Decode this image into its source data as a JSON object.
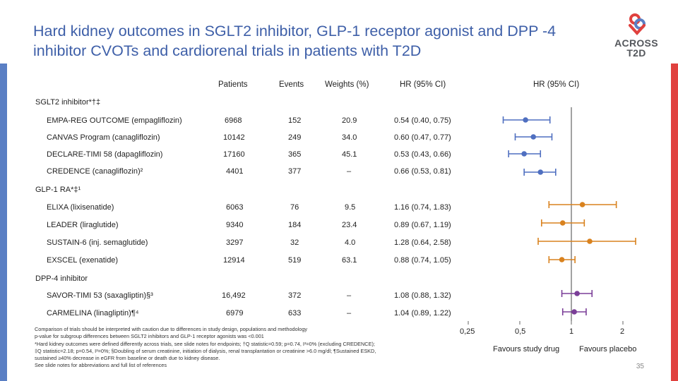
{
  "slide": {
    "title": "Hard kidney outcomes in SGLT2 inhibitor, GLP-1 receptor agonist and DPP -4 inhibitor CVOTs and cardiorenal trials in patients with T2D",
    "logo_line1": "ACROSS",
    "logo_line2": "T2D",
    "page_number": "35"
  },
  "headers": {
    "patients": "Patients",
    "events": "Events",
    "weights": "Weights (%)",
    "hr_text": "HR (95% CI)",
    "hr_plot": "HR (95% CI)"
  },
  "groups": [
    {
      "label": "SGLT2 inhibitor*†‡",
      "color": "#4f6fc0",
      "trials": [
        {
          "name": "EMPA-REG OUTCOME (empagliflozin)",
          "patients": "6968",
          "events": "152",
          "weight": "20.9",
          "hr_text": "0.54 (0.40, 0.75)"
        },
        {
          "name": "CANVAS Program (canagliflozin)",
          "patients": "10142",
          "events": "249",
          "weight": "34.0",
          "hr_text": "0.60 (0.47, 0.77)"
        },
        {
          "name": "DECLARE-TIMI 58 (dapagliflozin)",
          "patients": "17160",
          "events": "365",
          "weight": "45.1",
          "hr_text": "0.53 (0.43, 0.66)"
        },
        {
          "name": "CREDENCE (canagliflozin)²",
          "patients": "4401",
          "events": "377",
          "weight": "–",
          "hr_text": "0.66 (0.53, 0.81)"
        }
      ]
    },
    {
      "label": "GLP-1 RA*‡¹",
      "color": "#d9821e",
      "trials": [
        {
          "name": "ELIXA (lixisenatide)",
          "patients": "6063",
          "events": "76",
          "weight": "9.5",
          "hr_text": "1.16 (0.74, 1.83)"
        },
        {
          "name": "LEADER (liraglutide)",
          "patients": "9340",
          "events": "184",
          "weight": "23.4",
          "hr_text": "0.89 (0.67, 1.19)"
        },
        {
          "name": "SUSTAIN-6 (inj. semaglutide)",
          "patients": "3297",
          "events": "32",
          "weight": "4.0",
          "hr_text": "1.28 (0.64, 2.58)"
        },
        {
          "name": "EXSCEL (exenatide)",
          "patients": "12914",
          "events": "519",
          "weight": "63.1",
          "hr_text": "0.88 (0.74, 1.05)"
        }
      ]
    },
    {
      "label": "DPP-4 inhibitor",
      "color": "#7b3f98",
      "trials": [
        {
          "name": "SAVOR-TIMI 53 (saxagliptin)§³",
          "patients": "16,492",
          "events": "372",
          "weight": "–",
          "hr_text": "1.08 (0.88, 1.32)"
        },
        {
          "name": "CARMELINA (linagliptin)¶⁴",
          "patients": "6979",
          "events": "633",
          "weight": "–",
          "hr_text": "1.04 (0.89, 1.22)"
        }
      ]
    }
  ],
  "chart_data": {
    "type": "scatter",
    "scale": "log",
    "xlabel": "HR (95% CI)",
    "xlim": [
      0.25,
      2
    ],
    "ticks": [
      {
        "value": 0.25,
        "label": "0,25"
      },
      {
        "value": 0.5,
        "label": "0,5"
      },
      {
        "value": 1,
        "label": "1"
      },
      {
        "value": 2,
        "label": "2"
      }
    ],
    "reference_line": 1,
    "favours_left": "Favours study drug",
    "favours_right": "Favours placebo",
    "series": [
      {
        "name": "SGLT2 inhibitor",
        "color": "#4f6fc0",
        "points": [
          {
            "trial": "EMPA-REG OUTCOME",
            "hr": 0.54,
            "lo": 0.4,
            "hi": 0.75
          },
          {
            "trial": "CANVAS Program",
            "hr": 0.6,
            "lo": 0.47,
            "hi": 0.77
          },
          {
            "trial": "DECLARE-TIMI 58",
            "hr": 0.53,
            "lo": 0.43,
            "hi": 0.66
          },
          {
            "trial": "CREDENCE",
            "hr": 0.66,
            "lo": 0.53,
            "hi": 0.81
          }
        ]
      },
      {
        "name": "GLP-1 RA",
        "color": "#d9821e",
        "points": [
          {
            "trial": "ELIXA",
            "hr": 1.16,
            "lo": 0.74,
            "hi": 1.83
          },
          {
            "trial": "LEADER",
            "hr": 0.89,
            "lo": 0.67,
            "hi": 1.19
          },
          {
            "trial": "SUSTAIN-6",
            "hr": 1.28,
            "lo": 0.64,
            "hi": 2.58
          },
          {
            "trial": "EXSCEL",
            "hr": 0.88,
            "lo": 0.74,
            "hi": 1.05
          }
        ]
      },
      {
        "name": "DPP-4 inhibitor",
        "color": "#7b3f98",
        "points": [
          {
            "trial": "SAVOR-TIMI 53",
            "hr": 1.08,
            "lo": 0.88,
            "hi": 1.32
          },
          {
            "trial": "CARMELINA",
            "hr": 1.04,
            "lo": 0.89,
            "hi": 1.22
          }
        ]
      }
    ]
  },
  "footnotes": [
    "Comparison of trials should be interpreted with caution due to differences in study design, populations and methodology",
    "p-value for subgroup differences between SGLT2 inhibitors and GLP-1 receptor agonists was <0.001",
    "*Hard kidney outcomes were defined differently across trials, see slide notes for endpoints; †Q statistic=0.59; p=0.74, I²=0% (excluding CREDENCE);",
    "‡Q statistic=2.18; p=0.54, I²=0%; §Doubling of serum creatinine, initiation of dialysis, renal transplantation or creatinine >6.0 mg/dl; ¶Sustained ESKD,",
    "sustained ≥40% decrease in eGFR from baseline or death due to kidney disease.",
    "See slide notes for abbreviations and full list of references"
  ],
  "colors": {
    "title": "#3e5fa8",
    "left_bar": "#5a7fc4",
    "right_bar": "#e0413e"
  }
}
